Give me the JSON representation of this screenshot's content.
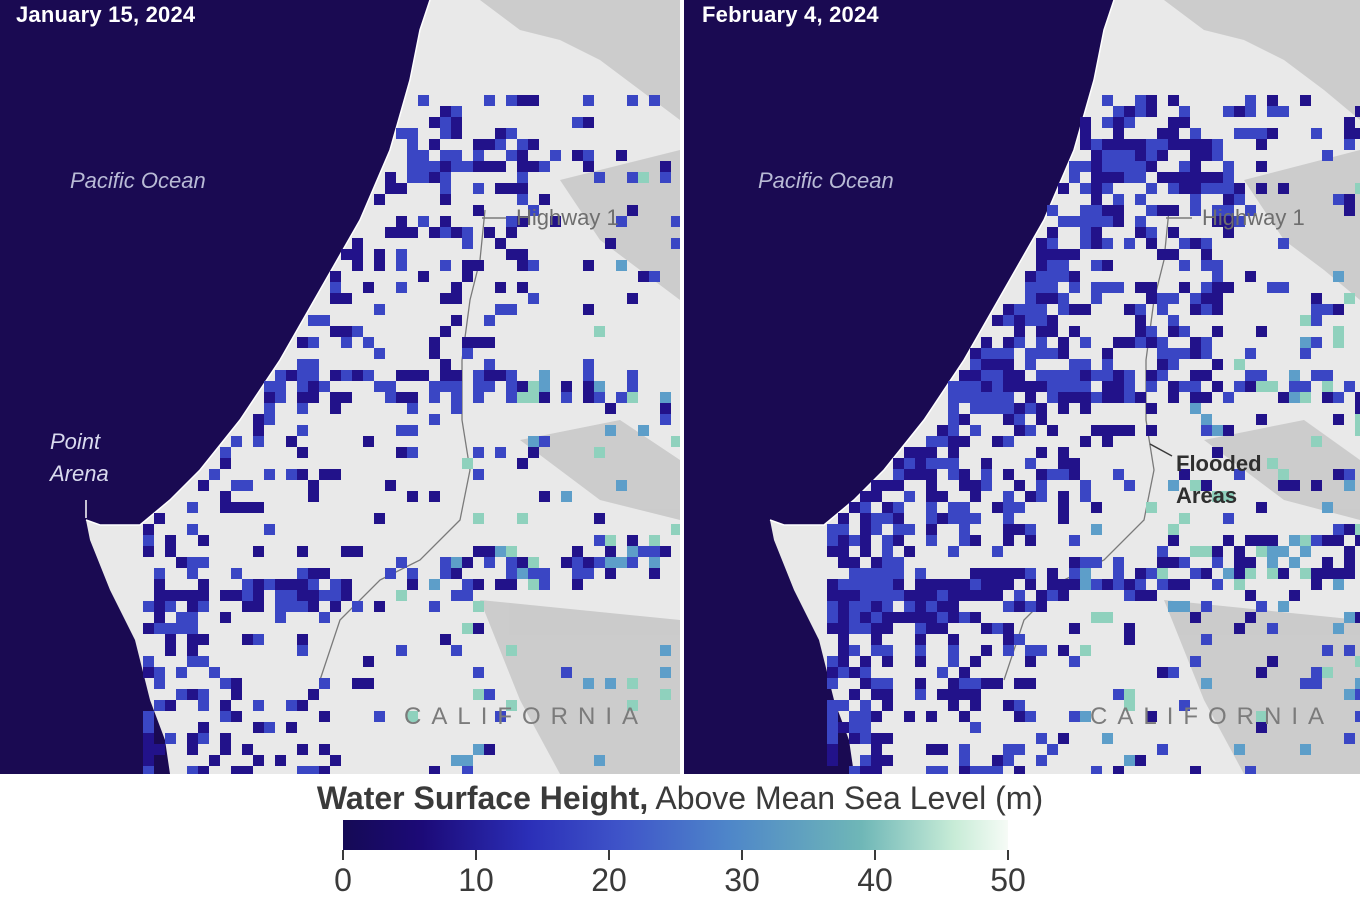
{
  "panels": [
    {
      "date": "January 15, 2024",
      "ocean_label": "Pacific Ocean",
      "road_label": "Highway 1",
      "place_label": "Point Arena",
      "state_label": "CALIFORNIA"
    },
    {
      "date": "February 4, 2024",
      "ocean_label": "Pacific Ocean",
      "road_label": "Highway 1",
      "flood_label": "Flooded Areas",
      "state_label": "CALIFORNIA"
    }
  ],
  "legend": {
    "title_bold": "Water Surface Height,",
    "title_rest": " Above Mean Sea Level (m)",
    "min": 0,
    "max": 50,
    "ticks": [
      "0",
      "10",
      "20",
      "30",
      "40",
      "50"
    ],
    "colors": [
      "#150a55",
      "#1c0a78",
      "#2b2fb8",
      "#3f55c9",
      "#4e86c9",
      "#6fb7b7",
      "#c8ecd7",
      "#f6fbf6"
    ]
  },
  "map_colors": {
    "ocean": "#1a0a52",
    "land": "#e9e9e9",
    "terrain_shadow": "#b9b9b9",
    "water_deep": "#22128a",
    "water_mid": "#3a46c4",
    "water_light": "#5d9ec9",
    "water_pale": "#8fd1bd"
  }
}
